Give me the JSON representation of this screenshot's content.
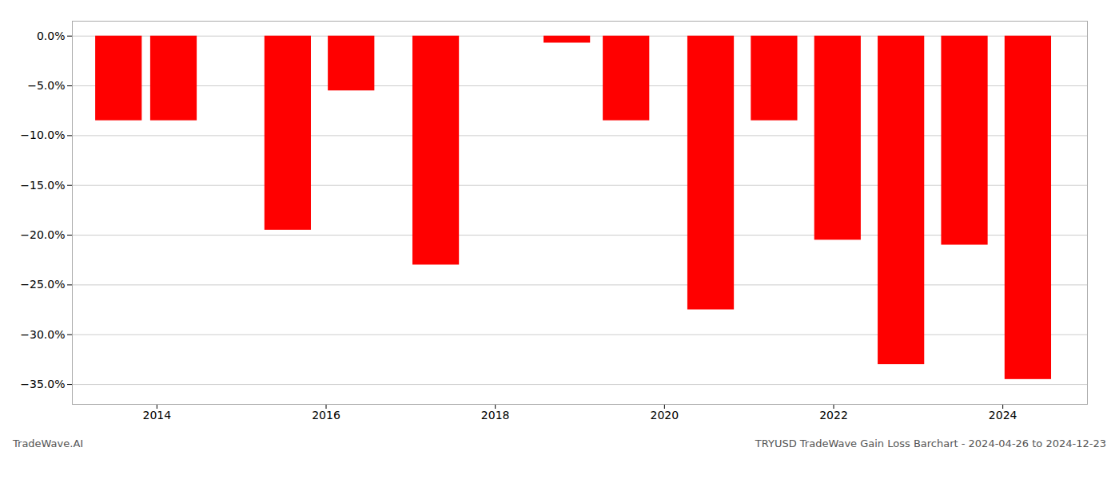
{
  "chart_data": {
    "type": "bar",
    "x": [
      2013.55,
      2014.2,
      2015.55,
      2016.3,
      2017.3,
      2018.85,
      2019.55,
      2020.55,
      2021.3,
      2022.05,
      2022.8,
      2023.55,
      2024.3
    ],
    "values": [
      -8.5,
      -8.5,
      -19.5,
      -5.5,
      -23.0,
      -0.7,
      -8.5,
      -27.5,
      -8.5,
      -20.5,
      -33.0,
      -21.0,
      -34.5
    ],
    "color": "#ff0000",
    "xlim": [
      2013.0,
      2025.0
    ],
    "xticks": [
      2014,
      2016,
      2018,
      2020,
      2022,
      2024
    ],
    "ylim": [
      -37,
      1.5
    ],
    "yticks": [
      {
        "value": 0,
        "label": "0.0%"
      },
      {
        "value": -5,
        "label": "−5.0%"
      },
      {
        "value": -10,
        "label": "−10.0%"
      },
      {
        "value": -15,
        "label": "−15.0%"
      },
      {
        "value": -20,
        "label": "−20.0%"
      },
      {
        "value": -25,
        "label": "−25.0%"
      },
      {
        "value": -30,
        "label": "−30.0%"
      },
      {
        "value": -35,
        "label": "−35.0%"
      }
    ],
    "grid": true,
    "annotations": [
      "TradeWave.AI",
      "TRYUSD TradeWave Gain Loss Barchart - 2024-04-26 to 2024-12-23"
    ]
  }
}
